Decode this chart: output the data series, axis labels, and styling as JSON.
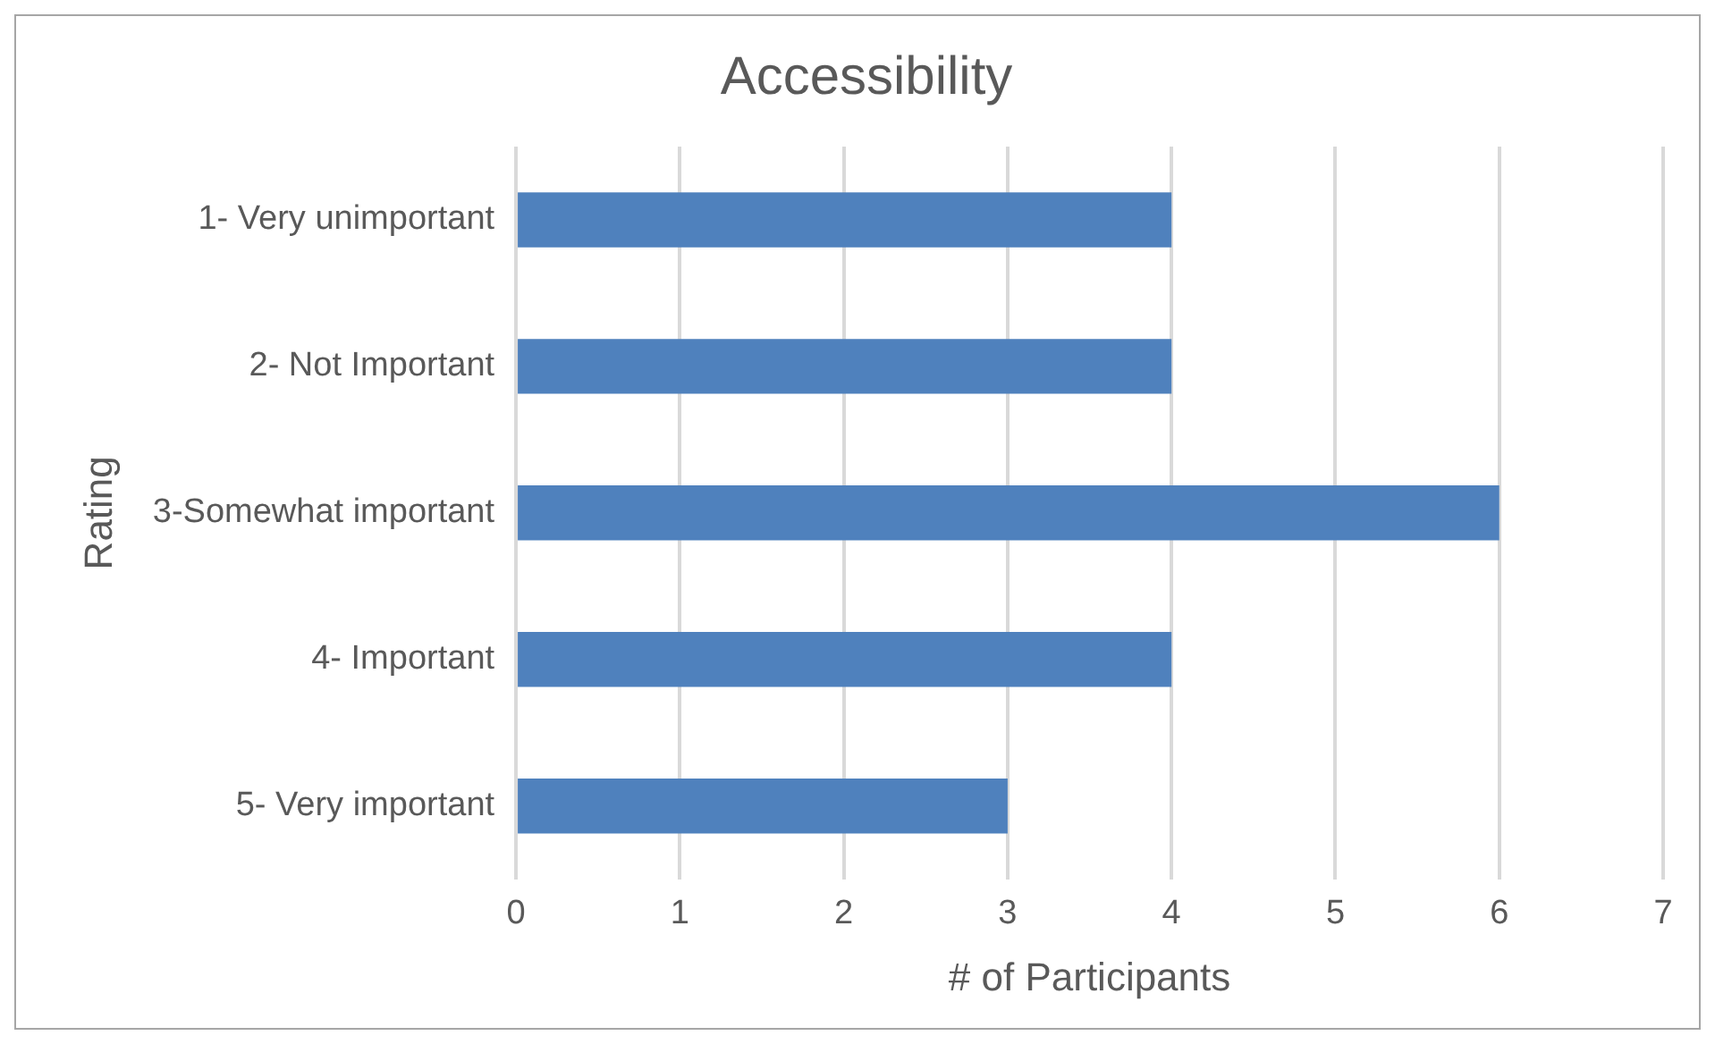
{
  "chart_data": {
    "type": "bar",
    "orientation": "horizontal",
    "title": "Accessibility",
    "xlabel": "# of Participants",
    "ylabel": "Rating",
    "categories": [
      "1- Very unimportant",
      "2- Not Important",
      "3-Somewhat important",
      "4- Important",
      "5- Very important"
    ],
    "values": [
      4,
      4,
      6,
      4,
      3
    ],
    "color": "#4f81bd",
    "xlim": [
      0,
      7
    ],
    "xticks": [
      0,
      1,
      2,
      3,
      4,
      5,
      6,
      7
    ],
    "grid": "x",
    "legend": false
  }
}
